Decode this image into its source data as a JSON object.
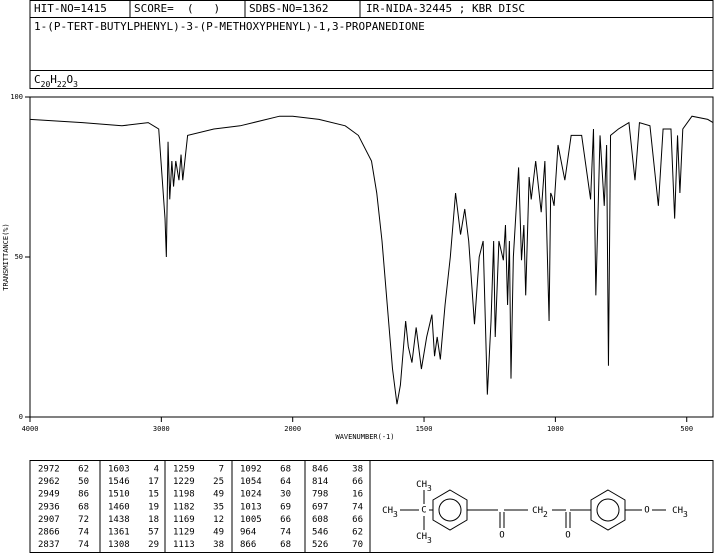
{
  "header": {
    "hit_no": "HIT-NO=1415",
    "score": "SCORE=  (   )",
    "sdbs_no": "SDBS-NO=1362",
    "source": "IR-NIDA-32445 ; KBR DISC",
    "name": "1-(P-TERT-BUTYLPHENYL)-3-(P-METHOXYPHENYL)-1,3-PROPANEDIONE",
    "formula": [
      "C",
      "20",
      "H",
      "22",
      "O",
      "3"
    ]
  },
  "chart_data": {
    "type": "line",
    "xlabel": "WAVENUMBER(-1)",
    "ylabel": "TRANSMITTANCE(%)",
    "xlim": [
      4000,
      400
    ],
    "xscale_break": 2000,
    "ylim": [
      0,
      100
    ],
    "xticks": [
      4000,
      3000,
      2000,
      1500,
      1000,
      500
    ],
    "yticks": [
      0,
      50,
      100
    ],
    "color": "#000000",
    "x": [
      4000,
      3600,
      3300,
      3100,
      3020,
      2972,
      2962,
      2949,
      2936,
      2920,
      2907,
      2890,
      2866,
      2850,
      2837,
      2800,
      2600,
      2400,
      2300,
      2100,
      2000,
      1900,
      1800,
      1750,
      1700,
      1680,
      1660,
      1640,
      1620,
      1603,
      1590,
      1570,
      1560,
      1546,
      1530,
      1510,
      1490,
      1470,
      1460,
      1450,
      1438,
      1420,
      1400,
      1380,
      1361,
      1345,
      1330,
      1308,
      1290,
      1275,
      1259,
      1245,
      1235,
      1229,
      1215,
      1198,
      1190,
      1182,
      1175,
      1169,
      1160,
      1140,
      1129,
      1120,
      1113,
      1100,
      1092,
      1075,
      1054,
      1040,
      1024,
      1018,
      1013,
      1005,
      990,
      964,
      940,
      900,
      866,
      855,
      846,
      830,
      814,
      805,
      798,
      790,
      760,
      720,
      697,
      680,
      640,
      608,
      590,
      560,
      546,
      535,
      526,
      515,
      480,
      420,
      400
    ],
    "values": [
      93,
      92,
      91,
      92,
      90,
      62,
      50,
      86,
      68,
      80,
      72,
      80,
      74,
      82,
      74,
      88,
      90,
      91,
      92,
      94,
      94,
      93,
      91,
      88,
      80,
      70,
      55,
      35,
      15,
      4,
      10,
      30,
      22,
      17,
      28,
      15,
      25,
      32,
      19,
      25,
      18,
      35,
      50,
      70,
      57,
      65,
      55,
      29,
      50,
      55,
      7,
      30,
      55,
      25,
      55,
      49,
      60,
      35,
      55,
      12,
      50,
      78,
      49,
      60,
      38,
      75,
      68,
      80,
      64,
      80,
      30,
      70,
      69,
      66,
      85,
      74,
      88,
      88,
      68,
      90,
      38,
      88,
      66,
      85,
      16,
      88,
      90,
      92,
      74,
      92,
      91,
      66,
      90,
      90,
      62,
      88,
      70,
      90,
      94,
      93,
      92
    ]
  },
  "peak_table": [
    [
      [
        2972,
        62
      ],
      [
        2962,
        50
      ],
      [
        2949,
        86
      ],
      [
        2936,
        68
      ],
      [
        2907,
        72
      ],
      [
        2866,
        74
      ],
      [
        2837,
        74
      ]
    ],
    [
      [
        1603,
        4
      ],
      [
        1546,
        17
      ],
      [
        1510,
        15
      ],
      [
        1460,
        19
      ],
      [
        1438,
        18
      ],
      [
        1361,
        57
      ],
      [
        1308,
        29
      ]
    ],
    [
      [
        1259,
        7
      ],
      [
        1229,
        25
      ],
      [
        1198,
        49
      ],
      [
        1182,
        35
      ],
      [
        1169,
        12
      ],
      [
        1129,
        49
      ],
      [
        1113,
        38
      ]
    ],
    [
      [
        1092,
        68
      ],
      [
        1054,
        64
      ],
      [
        1024,
        30
      ],
      [
        1013,
        69
      ],
      [
        1005,
        66
      ],
      [
        964,
        74
      ],
      [
        866,
        68
      ]
    ],
    [
      [
        846,
        38
      ],
      [
        814,
        66
      ],
      [
        798,
        16
      ],
      [
        697,
        74
      ],
      [
        608,
        66
      ],
      [
        546,
        62
      ],
      [
        526,
        70
      ]
    ]
  ],
  "structure": {
    "ch3_top": [
      "CH",
      "3"
    ],
    "ch3_left": [
      "CH",
      "3"
    ],
    "ch3_bottom": [
      "CH",
      "3"
    ],
    "c_quat": "C",
    "o_left": "O",
    "ch2": [
      "CH",
      "2"
    ],
    "o_right": "O",
    "o_ether": "O",
    "ch3_right": [
      "CH",
      "3"
    ]
  }
}
